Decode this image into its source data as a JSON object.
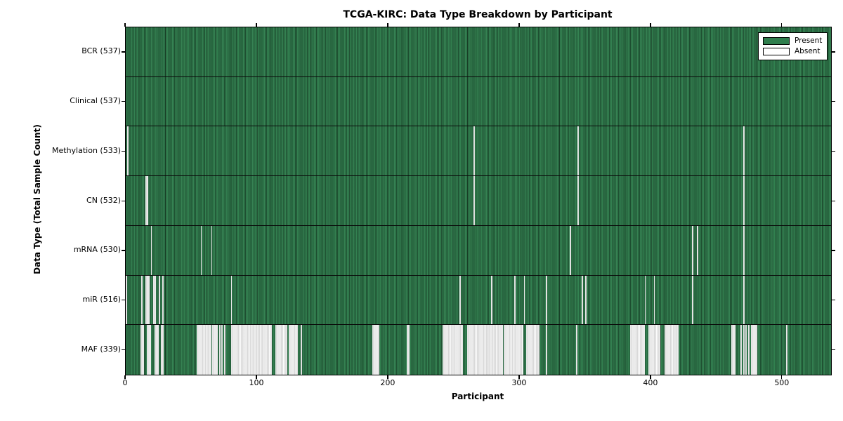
{
  "title": "TCGA-KIRC: Data Type Breakdown by Participant",
  "xlabel": "Participant",
  "ylabel": "Data Type (Total Sample Count)",
  "legend": {
    "present_label": "Present",
    "absent_label": "Absent"
  },
  "colors": {
    "present": "#2f7e4d",
    "absent": "#e0e0e0",
    "bar_edge": "#1c3f2a",
    "axis": "#000000",
    "background": "#ffffff"
  },
  "chart_data": {
    "type": "heatmap",
    "title": "TCGA-KIRC: Data Type Breakdown by Participant",
    "xlabel": "Participant",
    "ylabel": "Data Type (Total Sample Count)",
    "x_ticks": [
      0,
      100,
      200,
      300,
      400,
      500
    ],
    "x_max": 537,
    "total_participants": 537,
    "legend_entries": [
      "Present",
      "Absent"
    ],
    "legend_position": "upper right",
    "rows": [
      {
        "label": "BCR (537)",
        "data_type": "BCR",
        "present_count": 537,
        "absent_ranges": []
      },
      {
        "label": "Clinical (537)",
        "data_type": "Clinical",
        "present_count": 537,
        "absent_ranges": []
      },
      {
        "label": "Methylation (533)",
        "data_type": "Methylation",
        "present_count": 533,
        "absent_ranges": [
          [
            1,
            1
          ],
          [
            265,
            265
          ],
          [
            344,
            344
          ],
          [
            470,
            470
          ]
        ]
      },
      {
        "label": "CN (532)",
        "data_type": "CN",
        "present_count": 532,
        "absent_ranges": [
          [
            15,
            16
          ],
          [
            265,
            265
          ],
          [
            344,
            344
          ],
          [
            470,
            470
          ]
        ]
      },
      {
        "label": "mRNA (530)",
        "data_type": "mRNA",
        "present_count": 530,
        "absent_ranges": [
          [
            19,
            19
          ],
          [
            57,
            57
          ],
          [
            65,
            65
          ],
          [
            338,
            338
          ],
          [
            431,
            431
          ],
          [
            435,
            435
          ],
          [
            470,
            470
          ]
        ]
      },
      {
        "label": "miR (516)",
        "data_type": "miR",
        "present_count": 516,
        "absent_ranges": [
          [
            0,
            0
          ],
          [
            12,
            12
          ],
          [
            15,
            17
          ],
          [
            21,
            22
          ],
          [
            25,
            25
          ],
          [
            28,
            28
          ],
          [
            80,
            80
          ],
          [
            254,
            254
          ],
          [
            278,
            278
          ],
          [
            296,
            296
          ],
          [
            303,
            303
          ],
          [
            320,
            320
          ],
          [
            347,
            347
          ],
          [
            350,
            350
          ],
          [
            395,
            395
          ],
          [
            402,
            402
          ],
          [
            431,
            431
          ],
          [
            470,
            470
          ]
        ]
      },
      {
        "label": "MAF (339)",
        "data_type": "MAF",
        "present_count": 339,
        "absent_ranges": [
          [
            11,
            13
          ],
          [
            16,
            18
          ],
          [
            22,
            24
          ],
          [
            27,
            28
          ],
          [
            54,
            64
          ],
          [
            66,
            69
          ],
          [
            71,
            71
          ],
          [
            73,
            73
          ],
          [
            75,
            75
          ],
          [
            80,
            110
          ],
          [
            114,
            122
          ],
          [
            124,
            130
          ],
          [
            133,
            133
          ],
          [
            188,
            192
          ],
          [
            214,
            215
          ],
          [
            241,
            256
          ],
          [
            260,
            286
          ],
          [
            288,
            302
          ],
          [
            305,
            314
          ],
          [
            320,
            320
          ],
          [
            343,
            343
          ],
          [
            384,
            394
          ],
          [
            398,
            406
          ],
          [
            410,
            420
          ],
          [
            461,
            463
          ],
          [
            468,
            468
          ],
          [
            470,
            470
          ],
          [
            472,
            472
          ],
          [
            474,
            474
          ],
          [
            476,
            480
          ],
          [
            503,
            503
          ]
        ]
      }
    ]
  }
}
